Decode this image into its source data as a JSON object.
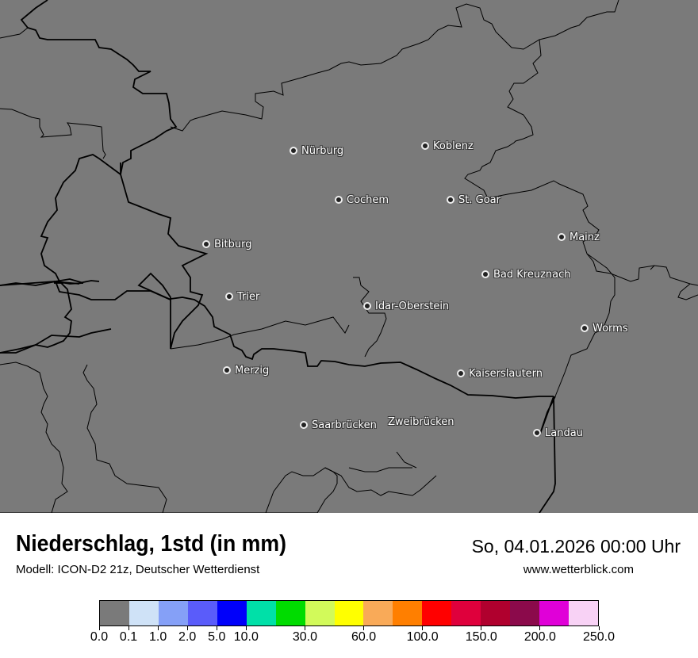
{
  "header": {
    "title": "Niederschlag, 1std (in mm)",
    "model": "Modell: ICON-D2 21z, Deutscher Wetterdienst",
    "datetime": "So, 04.01.2026 00:00 Uhr",
    "website": "www.wetterblick.com"
  },
  "map": {
    "background_color": "#7a7a7a",
    "border_color": "#000000",
    "cities": [
      {
        "name": "Nürburg",
        "dot": true
      },
      {
        "name": "Koblenz",
        "dot": true
      },
      {
        "name": "Cochem",
        "dot": true
      },
      {
        "name": "St. Goar",
        "dot": true
      },
      {
        "name": "Bitburg",
        "dot": true
      },
      {
        "name": "Mainz",
        "dot": true
      },
      {
        "name": "Bad Kreuznach",
        "dot": true
      },
      {
        "name": "Trier",
        "dot": true
      },
      {
        "name": "Idar-Oberstein",
        "dot": true
      },
      {
        "name": "Worms",
        "dot": true
      },
      {
        "name": "Merzig",
        "dot": true
      },
      {
        "name": "Kaiserslautern",
        "dot": true
      },
      {
        "name": "Saarbrücken",
        "dot": true
      },
      {
        "name": "Zweibrücken",
        "dot": false
      },
      {
        "name": "Landau",
        "dot": true
      }
    ]
  },
  "legend": {
    "colors": [
      "#7a7a7a",
      "#cfe2f7",
      "#85a0f7",
      "#5a5cfa",
      "#0000fa",
      "#00e0a8",
      "#00dc00",
      "#d2fa5a",
      "#ffff00",
      "#f9aa58",
      "#ff7f00",
      "#ff0000",
      "#df003c",
      "#b0002e",
      "#8b0a4b",
      "#e000d8",
      "#f8d2f5"
    ],
    "labels": [
      "0.0",
      "0.1",
      "1.0",
      "2.0",
      "5.0",
      "10.0",
      "30.0",
      "60.0",
      "100.0",
      "150.0",
      "200.0",
      "250.0"
    ],
    "label_boundaries": [
      0,
      1,
      2,
      3,
      4,
      5,
      7,
      9,
      11,
      13,
      15,
      17
    ]
  }
}
